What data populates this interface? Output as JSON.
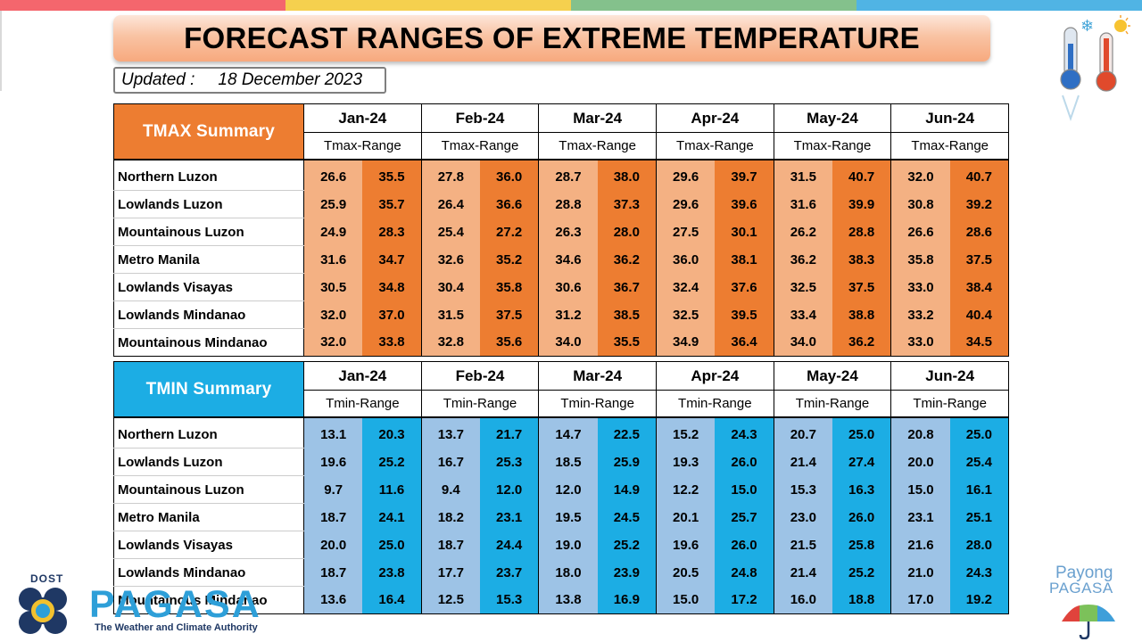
{
  "topbar_colors": [
    "#f4666d",
    "#f5d04e",
    "#84c18c",
    "#50b4e4"
  ],
  "title": "FORECAST RANGES OF EXTREME TEMPERATURE",
  "updated_label": "Updated :",
  "updated_date": "18 December 2023",
  "months": [
    "Jan-24",
    "Feb-24",
    "Mar-24",
    "Apr-24",
    "May-24",
    "Jun-24"
  ],
  "tmax": {
    "label": "TMAX Summary",
    "sub_label": "Tmax-Range",
    "header_color": "#ed7d31",
    "low_color": "#f4b183",
    "high_color": "#ed7d31",
    "rows": [
      {
        "region": "Northern Luzon",
        "values": [
          "26.6",
          "35.5",
          "27.8",
          "36.0",
          "28.7",
          "38.0",
          "29.6",
          "39.7",
          "31.5",
          "40.7",
          "32.0",
          "40.7"
        ]
      },
      {
        "region": "Lowlands Luzon",
        "values": [
          "25.9",
          "35.7",
          "26.4",
          "36.6",
          "28.8",
          "37.3",
          "29.6",
          "39.6",
          "31.6",
          "39.9",
          "30.8",
          "39.2"
        ]
      },
      {
        "region": "Mountainous Luzon",
        "values": [
          "24.9",
          "28.3",
          "25.4",
          "27.2",
          "26.3",
          "28.0",
          "27.5",
          "30.1",
          "26.2",
          "28.8",
          "26.6",
          "28.6"
        ]
      },
      {
        "region": "Metro Manila",
        "values": [
          "31.6",
          "34.7",
          "32.6",
          "35.2",
          "34.6",
          "36.2",
          "36.0",
          "38.1",
          "36.2",
          "38.3",
          "35.8",
          "37.5"
        ]
      },
      {
        "region": "Lowlands Visayas",
        "values": [
          "30.5",
          "34.8",
          "30.4",
          "35.8",
          "30.6",
          "36.7",
          "32.4",
          "37.6",
          "32.5",
          "37.5",
          "33.0",
          "38.4"
        ]
      },
      {
        "region": "Lowlands Mindanao",
        "values": [
          "32.0",
          "37.0",
          "31.5",
          "37.5",
          "31.2",
          "38.5",
          "32.5",
          "39.5",
          "33.4",
          "38.8",
          "33.2",
          "40.4"
        ]
      },
      {
        "region": "Mountainous Mindanao",
        "values": [
          "32.0",
          "33.8",
          "32.8",
          "35.6",
          "34.0",
          "35.5",
          "34.9",
          "36.4",
          "34.0",
          "36.2",
          "33.0",
          "34.5"
        ]
      }
    ]
  },
  "tmin": {
    "label": "TMIN Summary",
    "sub_label": "Tmin-Range",
    "header_color": "#1cade4",
    "low_color": "#9dc3e6",
    "high_color": "#1cade4",
    "rows": [
      {
        "region": "Northern Luzon",
        "values": [
          "13.1",
          "20.3",
          "13.7",
          "21.7",
          "14.7",
          "22.5",
          "15.2",
          "24.3",
          "20.7",
          "25.0",
          "20.8",
          "25.0"
        ]
      },
      {
        "region": "Lowlands Luzon",
        "values": [
          "19.6",
          "25.2",
          "16.7",
          "25.3",
          "18.5",
          "25.9",
          "19.3",
          "26.0",
          "21.4",
          "27.4",
          "20.0",
          "25.4"
        ]
      },
      {
        "region": "Mountainous Luzon",
        "values": [
          "9.7",
          "11.6",
          "9.4",
          "12.0",
          "12.0",
          "14.9",
          "12.2",
          "15.0",
          "15.3",
          "16.3",
          "15.0",
          "16.1"
        ]
      },
      {
        "region": "Metro Manila",
        "values": [
          "18.7",
          "24.1",
          "18.2",
          "23.1",
          "19.5",
          "24.5",
          "20.1",
          "25.7",
          "23.0",
          "26.0",
          "23.1",
          "25.1"
        ]
      },
      {
        "region": "Lowlands Visayas",
        "values": [
          "20.0",
          "25.0",
          "18.7",
          "24.4",
          "19.0",
          "25.2",
          "19.6",
          "26.0",
          "21.5",
          "25.8",
          "21.6",
          "28.0"
        ]
      },
      {
        "region": "Lowlands Mindanao",
        "values": [
          "18.7",
          "23.8",
          "17.7",
          "23.7",
          "18.0",
          "23.9",
          "20.5",
          "24.8",
          "21.4",
          "25.2",
          "21.0",
          "24.3"
        ]
      },
      {
        "region": "Mountainous Mindanao",
        "values": [
          "13.6",
          "16.4",
          "12.5",
          "15.3",
          "13.8",
          "16.9",
          "15.0",
          "17.2",
          "16.0",
          "18.8",
          "17.0",
          "19.2"
        ]
      }
    ]
  },
  "footer": {
    "dost_label": "DOST",
    "pagasa_word": "PAGASA",
    "pagasa_tagline": "The Weather and Climate Authority",
    "payong_line1": "Payong",
    "payong_line2": "PAGASA"
  },
  "icons": [
    "cold-thermometer-icon",
    "hot-thermometer-icon",
    "snowflake-icon",
    "sun-icon",
    "umbrella-icon"
  ]
}
